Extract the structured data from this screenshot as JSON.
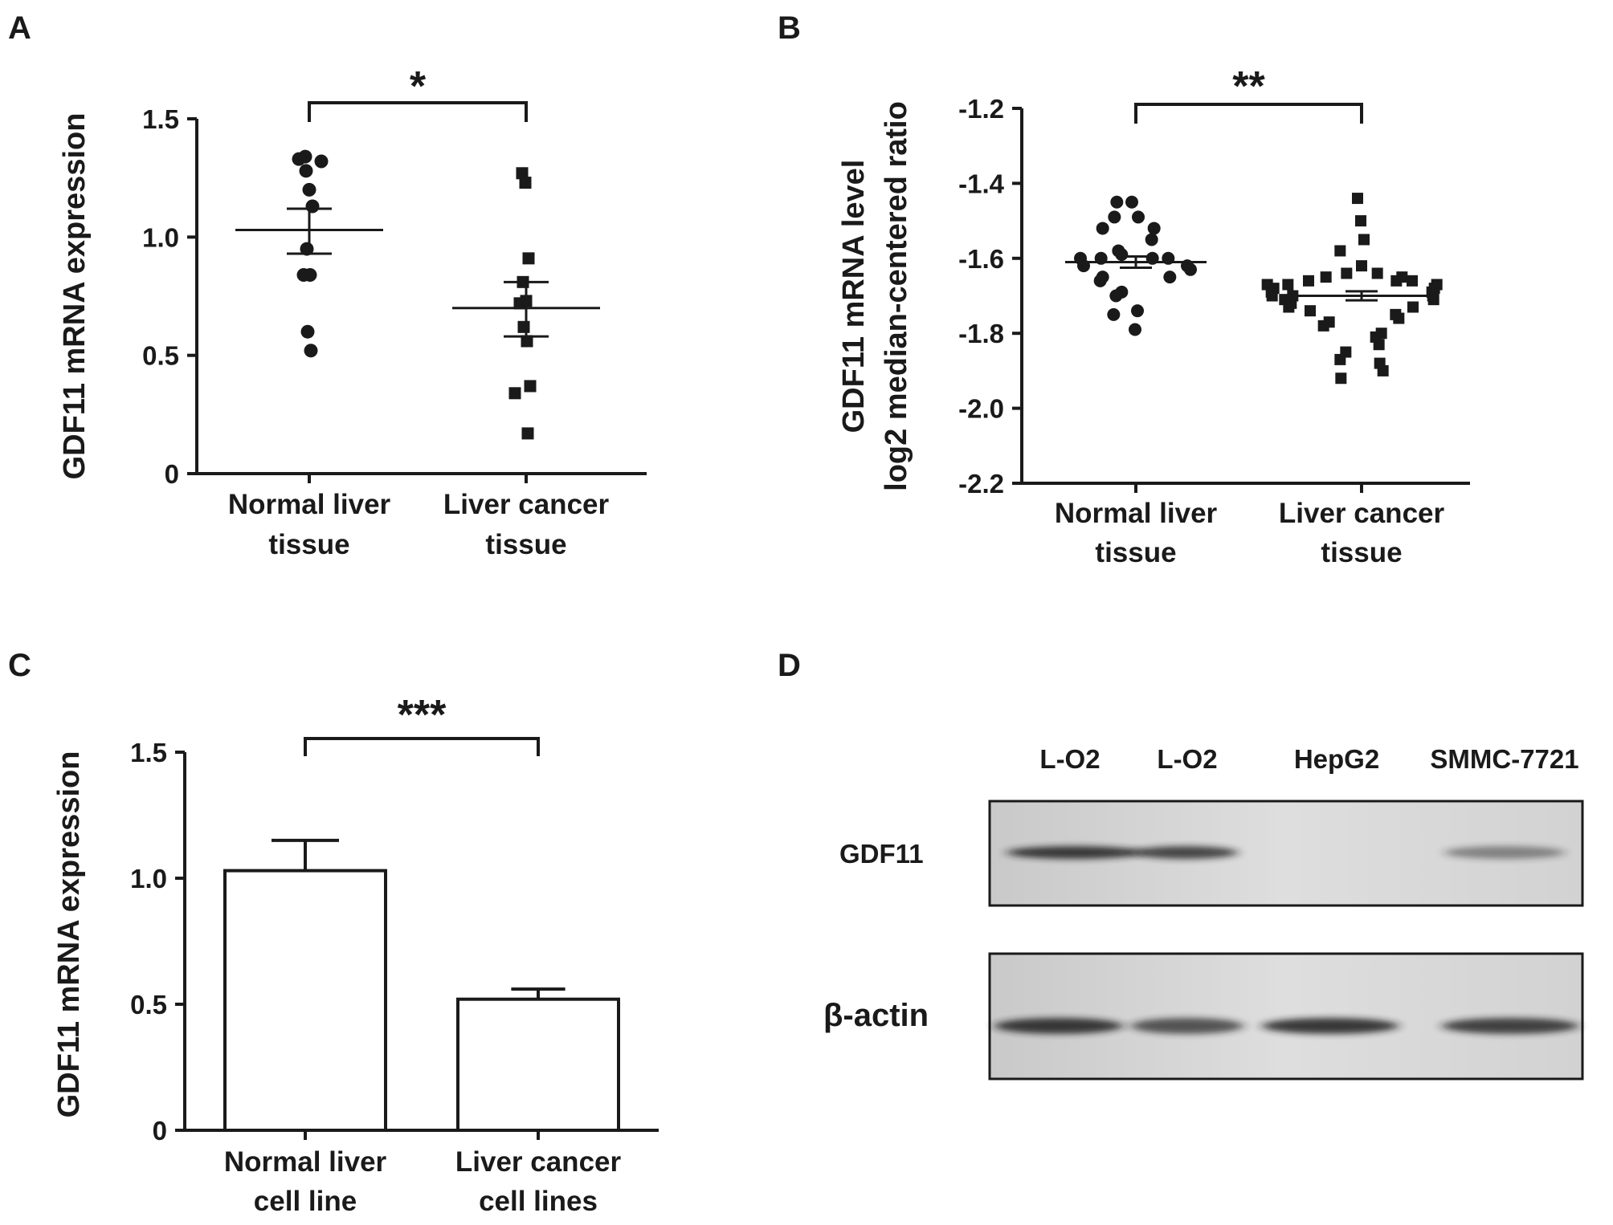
{
  "colors": {
    "ink": "#1a1a1a",
    "blot_bg": "#d6d6d6",
    "band": "#1e1e1e"
  },
  "panels": {
    "A": {
      "letter": "A"
    },
    "B": {
      "letter": "B"
    },
    "C": {
      "letter": "C"
    },
    "D": {
      "letter": "D",
      "lanes": [
        "L-O2",
        "L-O2",
        "HepG2",
        "SMMC-7721"
      ],
      "rows": [
        {
          "label": "GDF11",
          "intensity": [
            0.85,
            0.78,
            0.0,
            0.45
          ]
        },
        {
          "label": "β-actin",
          "intensity": [
            0.85,
            0.7,
            0.85,
            0.8
          ]
        }
      ]
    }
  },
  "chart_data": [
    {
      "panel": "A",
      "type": "scatter",
      "ylabel": "GDF11 mRNA expression",
      "ylim": [
        0,
        1.5
      ],
      "yticks": [
        0,
        0.5,
        1.0,
        1.5
      ],
      "ytick_labels": [
        "0",
        "0.5",
        "1.0",
        "1.5"
      ],
      "categories": [
        [
          "Normal liver",
          "tissue"
        ],
        [
          "Liver cancer",
          "tissue"
        ]
      ],
      "markers": [
        "circle",
        "square"
      ],
      "groups": [
        {
          "values": [
            1.34,
            1.33,
            1.32,
            1.28,
            1.2,
            1.13,
            0.95,
            0.84,
            0.84,
            0.6,
            0.52
          ],
          "mean": 1.03,
          "sem_low": 0.93,
          "sem_high": 1.12
        },
        {
          "values": [
            1.27,
            1.23,
            0.91,
            0.81,
            0.73,
            0.72,
            0.62,
            0.56,
            0.37,
            0.34,
            0.17
          ],
          "mean": 0.7,
          "sem_low": 0.58,
          "sem_high": 0.81
        }
      ],
      "significance": "*"
    },
    {
      "panel": "B",
      "type": "scatter",
      "ylabel_lines": [
        "GDF11 mRNA level",
        "log2 median-centered ratio"
      ],
      "ylim": [
        -2.2,
        -1.2
      ],
      "yticks": [
        -2.2,
        -2.0,
        -1.8,
        -1.6,
        -1.4,
        -1.2
      ],
      "ytick_labels": [
        "-2.2",
        "-2.0",
        "-1.8",
        "-1.6",
        "-1.4",
        "-1.2"
      ],
      "categories": [
        [
          "Normal liver",
          "tissue"
        ],
        [
          "Liver cancer",
          "tissue"
        ]
      ],
      "markers": [
        "circle",
        "square"
      ],
      "groups": [
        {
          "values": [
            -1.45,
            -1.45,
            -1.49,
            -1.49,
            -1.52,
            -1.52,
            -1.55,
            -1.58,
            -1.59,
            -1.6,
            -1.6,
            -1.6,
            -1.6,
            -1.62,
            -1.62,
            -1.63,
            -1.65,
            -1.65,
            -1.66,
            -1.69,
            -1.7,
            -1.74,
            -1.75,
            -1.79
          ],
          "mean": -1.61,
          "sem_low": -1.625,
          "sem_high": -1.595
        },
        {
          "values": [
            -1.44,
            -1.5,
            -1.55,
            -1.58,
            -1.62,
            -1.64,
            -1.64,
            -1.65,
            -1.65,
            -1.66,
            -1.66,
            -1.66,
            -1.67,
            -1.67,
            -1.67,
            -1.68,
            -1.68,
            -1.69,
            -1.69,
            -1.7,
            -1.7,
            -1.7,
            -1.71,
            -1.71,
            -1.72,
            -1.73,
            -1.73,
            -1.74,
            -1.75,
            -1.76,
            -1.77,
            -1.78,
            -1.8,
            -1.81,
            -1.83,
            -1.85,
            -1.87,
            -1.88,
            -1.9,
            -1.92
          ],
          "mean": -1.7,
          "sem_low": -1.712,
          "sem_high": -1.688
        }
      ],
      "significance": "**"
    },
    {
      "panel": "C",
      "type": "bar",
      "ylabel": "GDF11 mRNA expression",
      "ylim": [
        0,
        1.5
      ],
      "yticks": [
        0,
        0.5,
        1.0,
        1.5
      ],
      "ytick_labels": [
        "0",
        "0.5",
        "1.0",
        "1.5"
      ],
      "categories": [
        [
          "Normal liver",
          "cell line"
        ],
        [
          "Liver cancer",
          "cell lines"
        ]
      ],
      "values": [
        1.03,
        0.52
      ],
      "errors": [
        0.12,
        0.04
      ],
      "significance": "***"
    }
  ]
}
